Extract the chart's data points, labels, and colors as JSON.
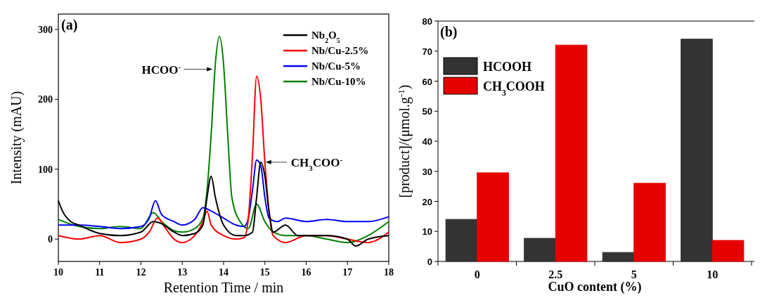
{
  "chart_data": [
    {
      "type": "line",
      "xlabel": "Retention Time / min",
      "ylabel": "Intensity (mAU)",
      "xlim": [
        10,
        18
      ],
      "ylim": [
        -32,
        322
      ],
      "xticks": [
        10,
        11,
        12,
        13,
        14,
        15,
        16,
        17,
        18
      ],
      "yticks": [
        0,
        100,
        200,
        300
      ],
      "legend": "top right",
      "grid": false,
      "annotations": [
        "(a)",
        {
          "text": "HCOO$^{-}$",
          "x": 13.8,
          "y": 243
        },
        {
          "text": "CH$_{3}$COO$^{-}$",
          "x": 14.95,
          "y": 110
        }
      ],
      "series": [
        {
          "name": "Nb$_{2}$O$_{5}$",
          "color": "#000000",
          "x": [
            10,
            10.1,
            10.3,
            10.5,
            10.8,
            11,
            11.5,
            12,
            12.3,
            12.5,
            12.8,
            13,
            13.3,
            13.5,
            13.6,
            13.7,
            13.8,
            14,
            14.3,
            14.5,
            14.7,
            14.8,
            14.9,
            15,
            15.1,
            15.2,
            15.5,
            15.8,
            16,
            16.5,
            17,
            17.2,
            17.5,
            18
          ],
          "values": [
            55,
            40,
            25,
            20,
            12,
            8,
            5,
            10,
            25,
            22,
            10,
            5,
            8,
            20,
            60,
            90,
            60,
            20,
            5,
            5,
            10,
            60,
            110,
            90,
            40,
            10,
            20,
            5,
            5,
            5,
            0,
            -10,
            0,
            5
          ]
        },
        {
          "name": "Nb/Cu-2.5%",
          "color": "#ff0000",
          "x": [
            10,
            10.5,
            11,
            11.5,
            12,
            12.2,
            12.4,
            12.6,
            12.8,
            13,
            13.3,
            13.5,
            13.6,
            13.7,
            14,
            14.3,
            14.5,
            14.6,
            14.7,
            14.8,
            14.9,
            15,
            15.1,
            15.2,
            15.5,
            16,
            16.5,
            17,
            17.5,
            18
          ],
          "values": [
            5,
            0,
            5,
            -5,
            0,
            10,
            30,
            15,
            0,
            -5,
            5,
            25,
            40,
            20,
            5,
            0,
            2,
            30,
            120,
            233,
            200,
            110,
            40,
            5,
            -5,
            5,
            5,
            0,
            -5,
            10
          ]
        },
        {
          "name": "Nb/Cu-5%",
          "color": "#0000ff",
          "x": [
            10,
            10.5,
            11,
            11.5,
            12,
            12.2,
            12.35,
            12.5,
            12.8,
            13,
            13.3,
            13.5,
            13.7,
            14,
            14.3,
            14.5,
            14.6,
            14.7,
            14.8,
            14.9,
            15,
            15.1,
            15.3,
            15.5,
            16,
            16.5,
            17,
            17.5,
            18
          ],
          "values": [
            20,
            20,
            18,
            15,
            18,
            30,
            55,
            35,
            25,
            20,
            28,
            45,
            40,
            30,
            20,
            18,
            30,
            70,
            113,
            105,
            60,
            30,
            25,
            30,
            25,
            28,
            25,
            25,
            32
          ]
        },
        {
          "name": "Nb/Cu-10%",
          "color": "#008000",
          "x": [
            10,
            10.5,
            11,
            11.5,
            12,
            12.3,
            12.5,
            12.8,
            13,
            13.3,
            13.5,
            13.6,
            13.7,
            13.8,
            13.9,
            14,
            14.1,
            14.2,
            14.4,
            14.6,
            14.8,
            15,
            15.2,
            15.5,
            16,
            16.5,
            17,
            17.5,
            18
          ],
          "values": [
            28,
            18,
            15,
            18,
            15,
            38,
            25,
            12,
            10,
            15,
            30,
            70,
            150,
            250,
            290,
            250,
            150,
            60,
            25,
            15,
            50,
            25,
            10,
            5,
            5,
            0,
            -5,
            5,
            25
          ]
        }
      ]
    },
    {
      "type": "bar",
      "xlabel": "CuO content (%)",
      "ylabel": "[product]/(μmol.g$^{-1}$)",
      "categories": [
        "0",
        "2.5",
        "5",
        "10"
      ],
      "ylim": [
        0,
        80
      ],
      "yticks": [
        0,
        10,
        20,
        30,
        40,
        50,
        60,
        70,
        80
      ],
      "legend": "top left",
      "annotations": [
        "(b)"
      ],
      "series": [
        {
          "name": "HCOOH",
          "color": "#333333",
          "values": [
            14,
            7.7,
            3,
            74
          ]
        },
        {
          "name": "CH$_{3}$COOH",
          "color": "#e60000",
          "values": [
            29.5,
            72,
            26,
            7
          ]
        }
      ]
    }
  ]
}
